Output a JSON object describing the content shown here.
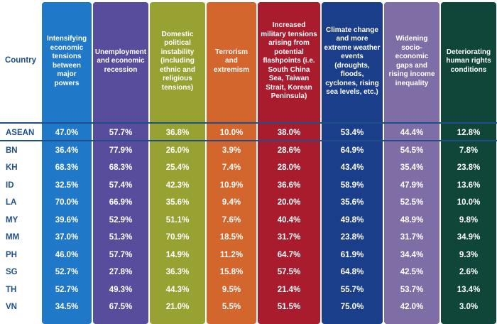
{
  "chart_data": {
    "type": "table",
    "row_header": "Country",
    "columns": [
      {
        "label": "Intensifying economic tensions between major powers",
        "color": "#1f78c8"
      },
      {
        "label": "Unemployment and economic recession",
        "color": "#584c9c"
      },
      {
        "label": "Domestic political instability (including ethnic and religious tensions)",
        "color": "#97a232"
      },
      {
        "label": "Terrorism and extremism",
        "color": "#d2662c"
      },
      {
        "label": "Increased military tensions arising from potential flashpoints (i.e. South China Sea, Taiwan Strait, Korean Peninsula)",
        "color": "#a81c2e"
      },
      {
        "label": "Climate change and more extreme weather events (droughts, floods, cyclones, rising sea levels, etc.)",
        "color": "#1b3e8a"
      },
      {
        "label": "Widening socio-economic gaps and rising income inequality",
        "color": "#7f6ea6"
      },
      {
        "label": "Deteriorating human rights conditions",
        "color": "#10463a"
      }
    ],
    "rows": [
      {
        "label": "ASEAN",
        "values": [
          "47.0%",
          "57.7%",
          "36.8%",
          "10.0%",
          "38.0%",
          "53.4%",
          "44.4%",
          "12.8%"
        ]
      },
      {
        "label": "BN",
        "values": [
          "36.4%",
          "77.9%",
          "26.0%",
          "3.9%",
          "28.6%",
          "64.9%",
          "54.5%",
          "7.8%"
        ]
      },
      {
        "label": "KH",
        "values": [
          "68.3%",
          "68.3%",
          "25.4%",
          "7.4%",
          "28.0%",
          "43.4%",
          "35.4%",
          "23.8%"
        ]
      },
      {
        "label": "ID",
        "values": [
          "32.5%",
          "57.4%",
          "42.3%",
          "10.9%",
          "36.6%",
          "58.9%",
          "47.9%",
          "13.6%"
        ]
      },
      {
        "label": "LA",
        "values": [
          "70.0%",
          "66.9%",
          "35.6%",
          "9.4%",
          "20.0%",
          "35.6%",
          "52.5%",
          "10.0%"
        ]
      },
      {
        "label": "MY",
        "values": [
          "39.6%",
          "52.9%",
          "51.1%",
          "7.6%",
          "40.4%",
          "49.8%",
          "48.9%",
          "9.8%"
        ]
      },
      {
        "label": "MM",
        "values": [
          "37.0%",
          "51.3%",
          "70.9%",
          "18.5%",
          "31.7%",
          "23.8%",
          "31.7%",
          "34.9%"
        ]
      },
      {
        "label": "PH",
        "values": [
          "46.0%",
          "57.7%",
          "14.9%",
          "11.2%",
          "64.7%",
          "61.9%",
          "34.4%",
          "9.3%"
        ]
      },
      {
        "label": "SG",
        "values": [
          "52.7%",
          "27.8%",
          "36.3%",
          "15.8%",
          "57.5%",
          "64.8%",
          "42.5%",
          "2.6%"
        ]
      },
      {
        "label": "TH",
        "values": [
          "52.7%",
          "49.3%",
          "44.3%",
          "9.5%",
          "21.4%",
          "55.7%",
          "53.7%",
          "13.4%"
        ]
      },
      {
        "label": "VN",
        "values": [
          "34.5%",
          "67.5%",
          "21.0%",
          "5.5%",
          "51.5%",
          "75.0%",
          "42.0%",
          "3.0%"
        ]
      }
    ]
  }
}
